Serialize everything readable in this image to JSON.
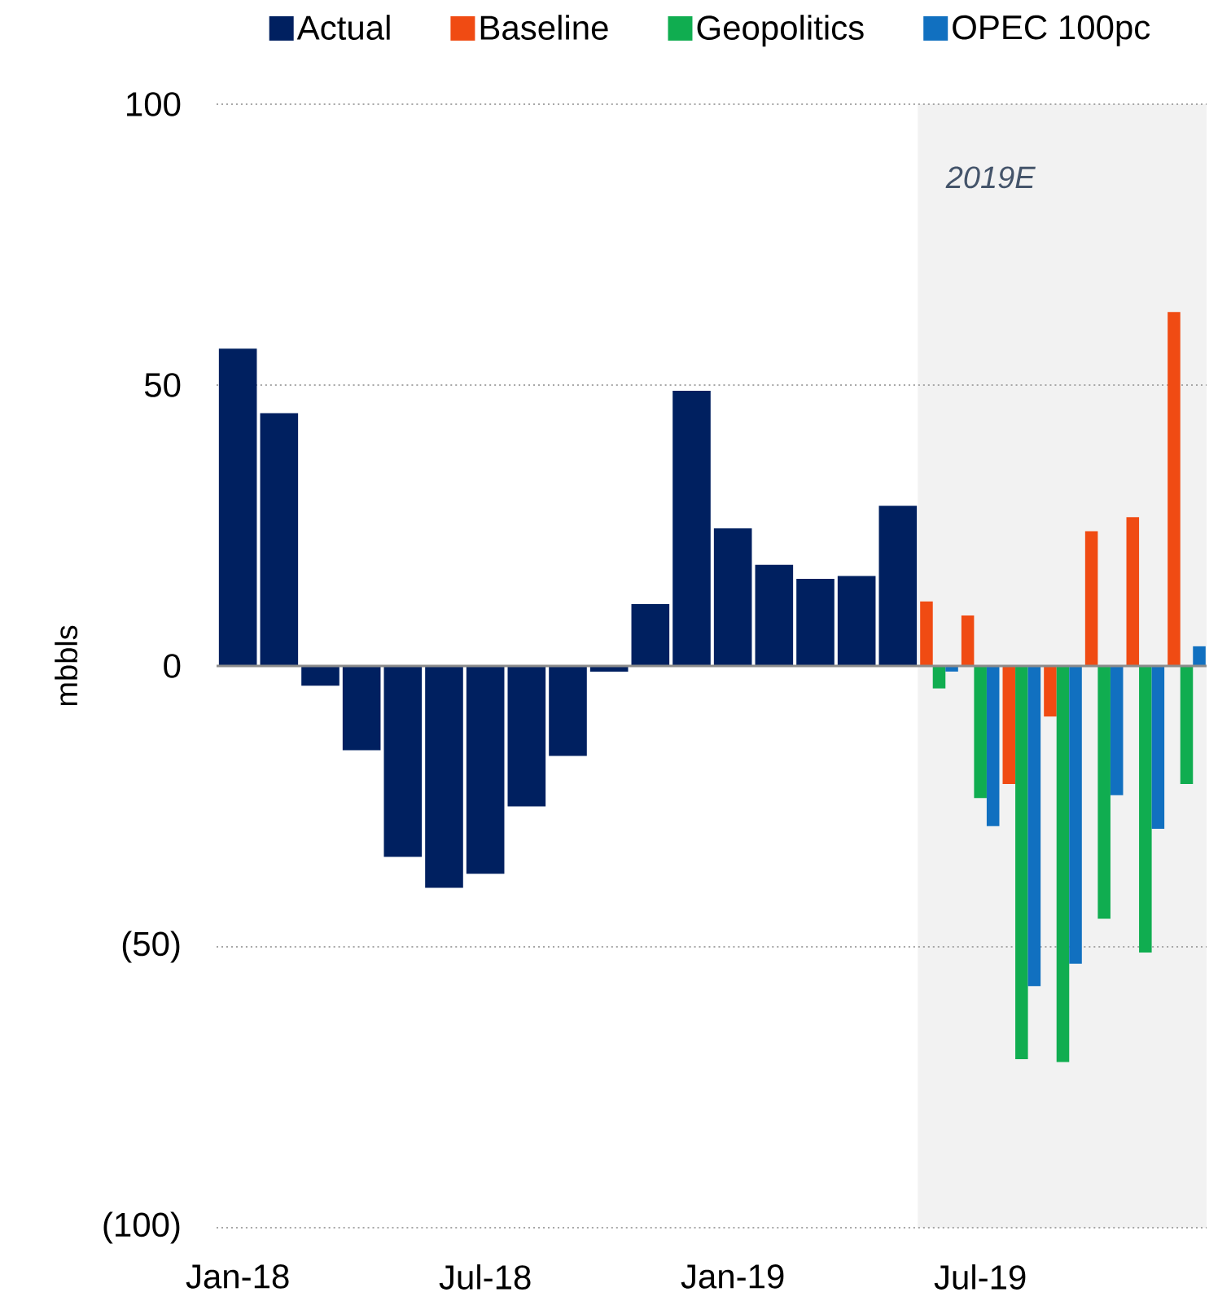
{
  "chart_data": {
    "type": "bar",
    "ylabel": "mbbls",
    "x": [
      "2018-01",
      "2018-02",
      "2018-03",
      "2018-04",
      "2018-05",
      "2018-06",
      "2018-07",
      "2018-08",
      "2018-09",
      "2018-10",
      "2018-11",
      "2018-12",
      "2019-01",
      "2019-02",
      "2019-03",
      "2019-04",
      "2019-05",
      "2019-06",
      "2019-07",
      "2019-08",
      "2019-09",
      "2019-10",
      "2019-11",
      "2019-12"
    ],
    "xlim": [
      "2017-12-16",
      "2019-12-16"
    ],
    "xticks": [
      {
        "value": "2018-01",
        "label": "Jan-18"
      },
      {
        "value": "2018-07",
        "label": "Jul-18"
      },
      {
        "value": "2019-01",
        "label": "Jan-19"
      },
      {
        "value": "2019-07",
        "label": "Jul-19"
      }
    ],
    "ylim": [
      -100,
      100
    ],
    "yticks": [
      100,
      50,
      0,
      {
        "value": -50,
        "label": "(50)"
      },
      {
        "value": -100,
        "label": "(100)"
      }
    ],
    "series": [
      {
        "name": "Actual",
        "color": "#002060",
        "values": [
          56.5,
          45,
          -3.5,
          -15,
          -34,
          -39.5,
          -37,
          -25,
          -16,
          -1,
          11,
          49,
          24.5,
          18,
          15.5,
          16,
          28.5,
          null,
          null,
          null,
          null,
          null,
          null,
          null
        ]
      },
      {
        "name": "Baseline",
        "color": "#f04b13",
        "values": [
          null,
          null,
          null,
          null,
          null,
          null,
          null,
          null,
          null,
          null,
          null,
          null,
          null,
          null,
          null,
          null,
          null,
          11.5,
          9,
          -21,
          -9,
          24,
          26.5,
          63
        ]
      },
      {
        "name": "Geopolitics",
        "color": "#10ad50",
        "values": [
          null,
          null,
          null,
          null,
          null,
          null,
          null,
          null,
          null,
          null,
          null,
          null,
          null,
          null,
          null,
          null,
          null,
          -4,
          -23.5,
          -70,
          -70.5,
          -45,
          -51,
          -21
        ]
      },
      {
        "name": "OPEC 100pc",
        "color": "#1170c0",
        "values": [
          null,
          null,
          null,
          null,
          null,
          null,
          null,
          null,
          null,
          null,
          null,
          null,
          null,
          null,
          null,
          null,
          null,
          -1,
          -28.5,
          -57,
          -53,
          -23,
          -29,
          3.5
        ]
      }
    ],
    "bands": [
      {
        "axis": "x",
        "from": "2019-05-16",
        "to": "2019-12-16",
        "label": "2019E",
        "color": "#f2f2f2"
      }
    ],
    "grid": "y",
    "legend": "top"
  }
}
